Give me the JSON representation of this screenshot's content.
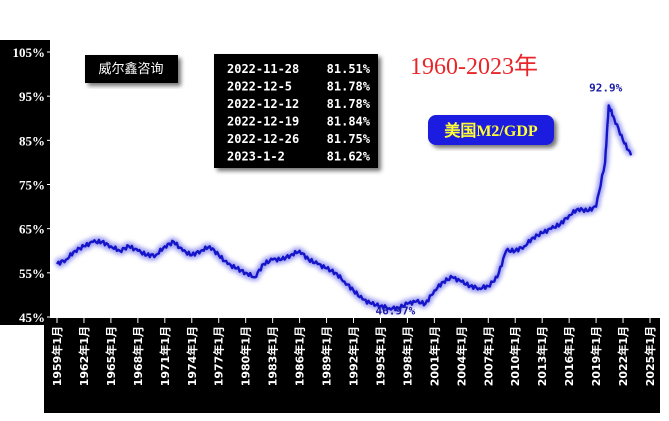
{
  "brand": "威尔鑫咨询",
  "title": "1960-2023年",
  "info_box": [
    {
      "date": "2022-11-28",
      "value": "81.51%"
    },
    {
      "date": "2022-12-5",
      "value": "81.78%"
    },
    {
      "date": "2022-12-12",
      "value": "81.78%"
    },
    {
      "date": "2022-12-19",
      "value": "81.84%"
    },
    {
      "date": "2022-12-26",
      "value": "81.75%"
    },
    {
      "date": "2023-1-2",
      "value": "81.62%"
    }
  ],
  "colors": {
    "line": "#1414c8",
    "line_glow": "#8c8cf0",
    "title": "#e8262a",
    "annotation": "#1a1aa8",
    "label_box": "#1e1ee0",
    "label_text": "#ffff33",
    "axis_bg": "#000000"
  },
  "chart_data": {
    "type": "line",
    "series": [
      {
        "name": "美国M2/GDP",
        "x": [
          1959,
          1960,
          1961,
          1962,
          1963,
          1964,
          1965,
          1966,
          1967,
          1968,
          1969,
          1970,
          1971,
          1972,
          1973,
          1974,
          1975,
          1976,
          1977,
          1978,
          1979,
          1980,
          1981,
          1982,
          1983,
          1984,
          1985,
          1986,
          1987,
          1988,
          1989,
          1990,
          1991,
          1992,
          1993,
          1994,
          1995,
          1996,
          1997,
          1998,
          1999,
          2000,
          2001,
          2002,
          2003,
          2004,
          2005,
          2006,
          2007,
          2008,
          2009,
          2010,
          2011,
          2012,
          2013,
          2014,
          2015,
          2016,
          2017,
          2018,
          2019,
          2020,
          2020.4,
          2021,
          2022,
          2022.9
        ],
        "values": [
          57,
          58,
          60,
          61,
          62,
          62,
          61,
          60,
          61,
          60,
          59,
          59,
          61,
          62,
          60,
          59,
          60,
          61,
          59,
          57,
          56,
          55,
          54,
          57,
          58,
          58,
          59,
          60,
          58,
          57,
          56,
          55,
          53,
          51,
          49,
          48,
          47.5,
          47,
          47,
          48,
          48.5,
          48,
          51,
          53,
          54,
          53,
          52,
          51.5,
          52,
          54,
          60,
          60,
          61,
          63,
          64,
          65,
          66,
          68,
          69.5,
          69,
          70,
          80,
          92.9,
          90,
          85,
          81.62
        ]
      }
    ],
    "annotations": [
      {
        "x": 2020.4,
        "y": 92.9,
        "text": "92.9%"
      },
      {
        "x": 1997,
        "y": 46.97,
        "text": "46.97%"
      }
    ],
    "yticks": [
      "45%",
      "55%",
      "65%",
      "75%",
      "85%",
      "95%",
      "105%"
    ],
    "ytick_values": [
      45,
      55,
      65,
      75,
      85,
      95,
      105
    ],
    "ylim": [
      45,
      105
    ],
    "xticks": [
      "1959年1月",
      "1962年1月",
      "1965年1月",
      "1968年1月",
      "1971年1月",
      "1974年1月",
      "1977年1月",
      "1980年1月",
      "1983年1月",
      "1986年1月",
      "1989年1月",
      "1992年1月",
      "1995年1月",
      "1998年1月",
      "2001年1月",
      "2004年1月",
      "2007年1月",
      "2010年1月",
      "2013年1月",
      "2016年1月",
      "2019年1月",
      "2022年1月",
      "2025年1月"
    ],
    "xtick_values": [
      1959,
      1962,
      1965,
      1968,
      1971,
      1974,
      1977,
      1980,
      1983,
      1986,
      1989,
      1992,
      1995,
      1998,
      2001,
      2004,
      2007,
      2010,
      2013,
      2016,
      2019,
      2022,
      2025
    ],
    "xlim": [
      1959,
      2025
    ],
    "grid": false
  }
}
